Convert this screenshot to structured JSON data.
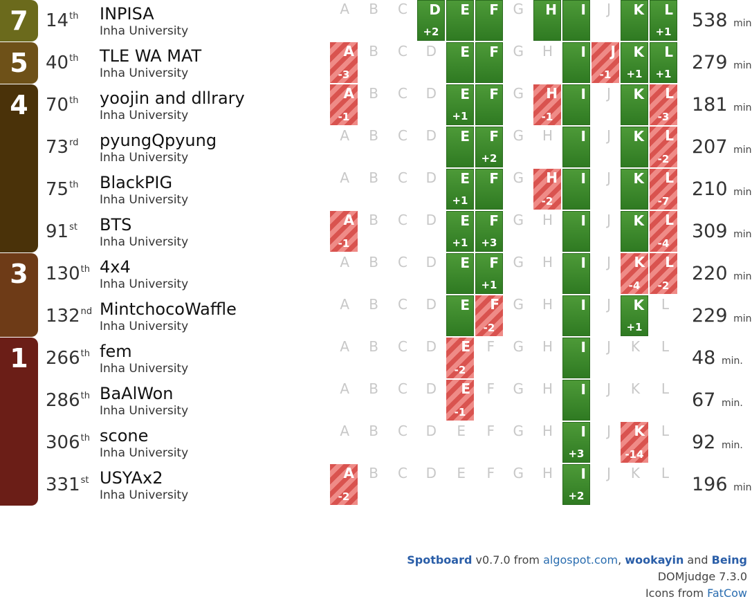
{
  "problem_letters": [
    "A",
    "B",
    "C",
    "D",
    "E",
    "F",
    "G",
    "H",
    "I",
    "J",
    "K",
    "L"
  ],
  "colors": {
    "band_7": "#6b6a1c",
    "band_5": "#6e5118",
    "band_4": "#4a3209",
    "band_3": "#6e3b17",
    "band_1": "#6b1e17"
  },
  "bands": [
    {
      "solved": "7",
      "start_row": 0,
      "row_count": 1,
      "color_key": "band_7"
    },
    {
      "solved": "5",
      "start_row": 1,
      "row_count": 1,
      "color_key": "band_5"
    },
    {
      "solved": "4",
      "start_row": 2,
      "row_count": 4,
      "color_key": "band_4"
    },
    {
      "solved": "3",
      "start_row": 6,
      "row_count": 2,
      "color_key": "band_3"
    },
    {
      "solved": "1",
      "start_row": 8,
      "row_count": 4,
      "color_key": "band_1"
    }
  ],
  "minute_unit": "min.",
  "teams": [
    {
      "rank": "14",
      "suffix": "th",
      "name": "INPISA",
      "university": "Inha University",
      "time": "538",
      "problems": [
        "n",
        "n",
        "n",
        "s:+2",
        "s",
        "s",
        "n",
        "s",
        "s",
        "n",
        "s",
        "s:+1"
      ]
    },
    {
      "rank": "40",
      "suffix": "th",
      "name": "TLE WA MAT",
      "university": "Inha University",
      "time": "279",
      "problems": [
        "f:-3",
        "n",
        "n",
        "n",
        "s",
        "s",
        "n",
        "n",
        "s",
        "f:-1",
        "s:+1",
        "s:+1"
      ]
    },
    {
      "rank": "70",
      "suffix": "th",
      "name": "yoojin and dllrary",
      "university": "Inha University",
      "time": "181",
      "problems": [
        "f:-1",
        "n",
        "n",
        "n",
        "s:+1",
        "s",
        "n",
        "f:-1",
        "s",
        "n",
        "s",
        "f:-3"
      ]
    },
    {
      "rank": "73",
      "suffix": "rd",
      "name": "pyungQpyung",
      "university": "Inha University",
      "time": "207",
      "problems": [
        "n",
        "n",
        "n",
        "n",
        "s",
        "s:+2",
        "n",
        "n",
        "s",
        "n",
        "s",
        "f:-2"
      ]
    },
    {
      "rank": "75",
      "suffix": "th",
      "name": "BlackPIG",
      "university": "Inha University",
      "time": "210",
      "problems": [
        "n",
        "n",
        "n",
        "n",
        "s:+1",
        "s",
        "n",
        "f:-2",
        "s",
        "n",
        "s",
        "f:-7"
      ]
    },
    {
      "rank": "91",
      "suffix": "st",
      "name": "BTS",
      "university": "Inha University",
      "time": "309",
      "problems": [
        "f:-1",
        "n",
        "n",
        "n",
        "s:+1",
        "s:+3",
        "n",
        "n",
        "s",
        "n",
        "s",
        "f:-4"
      ]
    },
    {
      "rank": "130",
      "suffix": "th",
      "name": "4x4",
      "university": "Inha University",
      "time": "220",
      "problems": [
        "n",
        "n",
        "n",
        "n",
        "s",
        "s:+1",
        "n",
        "n",
        "s",
        "n",
        "f:-4",
        "f:-2"
      ]
    },
    {
      "rank": "132",
      "suffix": "nd",
      "name": "MintchocoWaffle",
      "university": "Inha University",
      "time": "229",
      "problems": [
        "n",
        "n",
        "n",
        "n",
        "s",
        "f:-2",
        "n",
        "n",
        "s",
        "n",
        "s:+1",
        "n"
      ]
    },
    {
      "rank": "266",
      "suffix": "th",
      "name": "fem",
      "university": "Inha University",
      "time": "48",
      "problems": [
        "n",
        "n",
        "n",
        "n",
        "f:-2",
        "n",
        "n",
        "n",
        "s",
        "n",
        "n",
        "n"
      ]
    },
    {
      "rank": "286",
      "suffix": "th",
      "name": "BaAlWon",
      "university": "Inha University",
      "time": "67",
      "problems": [
        "n",
        "n",
        "n",
        "n",
        "f:-1",
        "n",
        "n",
        "n",
        "s",
        "n",
        "n",
        "n"
      ]
    },
    {
      "rank": "306",
      "suffix": "th",
      "name": "scone",
      "university": "Inha University",
      "time": "92",
      "problems": [
        "n",
        "n",
        "n",
        "n",
        "n",
        "n",
        "n",
        "n",
        "s:+3",
        "n",
        "f:-14",
        "n"
      ]
    },
    {
      "rank": "331",
      "suffix": "st",
      "name": "USYAx2",
      "university": "Inha University",
      "time": "196",
      "problems": [
        "f:-2",
        "n",
        "n",
        "n",
        "n",
        "n",
        "n",
        "n",
        "s:+2",
        "n",
        "n",
        "n"
      ]
    }
  ],
  "footer": {
    "app_name": "Spotboard",
    "version": "v0.7.0 from",
    "site": "algospot.com",
    "comma": ",",
    "author1": "wookayin",
    "and": "and",
    "author2": "Being",
    "domjudge": "DOMjudge 7.3.0",
    "icons_prefix": "Icons from",
    "icons_link": "FatCow"
  }
}
